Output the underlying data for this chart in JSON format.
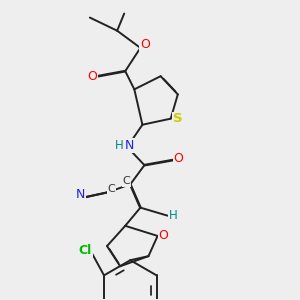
{
  "bg_color": "#eeeeee",
  "bond_color": "#222222",
  "bond_lw": 1.4,
  "dbo": 0.012,
  "colors": {
    "O": "#ff0000",
    "N": "#2020dd",
    "S": "#cccc00",
    "Cl": "#00bb00",
    "H": "#008888",
    "C": "#333333"
  }
}
